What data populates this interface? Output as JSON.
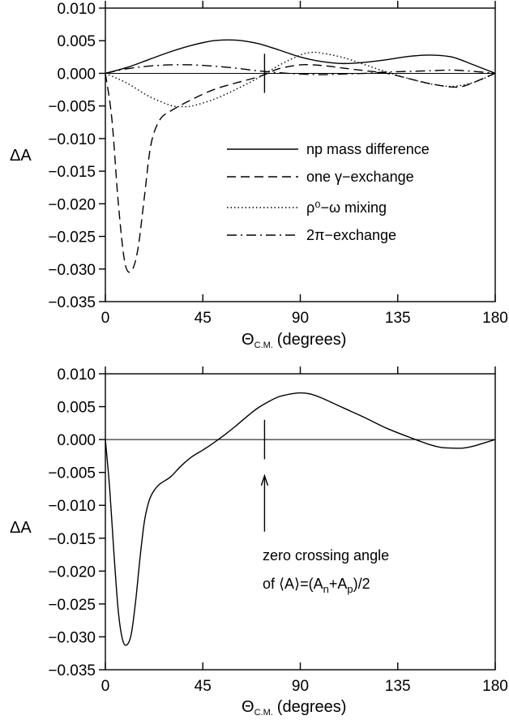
{
  "chart_data": [
    {
      "type": "line",
      "xlabel": "Θ",
      "xlabel_sub": "C.M.",
      "xlabel_unit": "(degrees)",
      "ylabel": "ΔA",
      "xlim": [
        0,
        180
      ],
      "ylim": [
        -0.035,
        0.01
      ],
      "xticks": [
        0,
        45,
        90,
        135,
        180
      ],
      "yticks": [
        0.01,
        0.005,
        0.0,
        -0.005,
        -0.01,
        -0.015,
        -0.02,
        -0.025,
        -0.03,
        -0.035
      ],
      "ytick_labels": [
        "0.010",
        "0.005",
        "0.000",
        "−0.005",
        "−0.010",
        "−0.015",
        "−0.020",
        "−0.025",
        "−0.030",
        "−0.035"
      ],
      "zero_line": true,
      "grid": false,
      "legend_position": "center-right",
      "marker": {
        "x": 73.5,
        "y_from": -0.003,
        "y_to": 0.003
      },
      "series": [
        {
          "name": "np mass difference",
          "style": "solid",
          "x": [
            0,
            10,
            20,
            30,
            40,
            50,
            60,
            70,
            80,
            90,
            100,
            110,
            120,
            130,
            140,
            150,
            160,
            170,
            180
          ],
          "y": [
            0,
            0.0009,
            0.0021,
            0.0033,
            0.0043,
            0.005,
            0.0051,
            0.0046,
            0.0036,
            0.0025,
            0.0018,
            0.0015,
            0.0017,
            0.0021,
            0.0026,
            0.0028,
            0.0025,
            0.0013,
            0
          ]
        },
        {
          "name": "one γ−exchange",
          "style": "dashed",
          "x": [
            0,
            3,
            6,
            9,
            12,
            15,
            18,
            21,
            25,
            30,
            40,
            50,
            60,
            70,
            75,
            80,
            90,
            100,
            110,
            120,
            130,
            140,
            150,
            160,
            165,
            170,
            180
          ],
          "y": [
            0,
            -0.007,
            -0.02,
            -0.029,
            -0.0303,
            -0.027,
            -0.019,
            -0.011,
            -0.0072,
            -0.0058,
            -0.004,
            -0.0025,
            -0.0015,
            -0.0006,
            0.0,
            0.0007,
            0.0013,
            0.0012,
            0.0008,
            0.0004,
            0.0,
            -0.0008,
            -0.0016,
            -0.0021,
            -0.002,
            -0.0014,
            0
          ]
        },
        {
          "name": "ρ⁰−ω mixing",
          "style": "dotted",
          "x": [
            0,
            10,
            20,
            30,
            35,
            40,
            50,
            60,
            70,
            80,
            90,
            95,
            100,
            110,
            120,
            130,
            140,
            150,
            160,
            170,
            180
          ],
          "y": [
            0,
            -0.0015,
            -0.0035,
            -0.0049,
            -0.0051,
            -0.005,
            -0.004,
            -0.0025,
            -0.0008,
            0.0012,
            0.0028,
            0.0032,
            0.0031,
            0.0024,
            0.0013,
            0.0002,
            -0.0008,
            -0.0016,
            -0.002,
            -0.0014,
            0
          ]
        },
        {
          "name": "2π−exchange",
          "style": "dashdot",
          "x": [
            0,
            10,
            20,
            30,
            40,
            50,
            60,
            70,
            80,
            90,
            100,
            110,
            120,
            130,
            140,
            150,
            160,
            170,
            180
          ],
          "y": [
            0,
            0.0007,
            0.0011,
            0.0013,
            0.0013,
            0.0011,
            0.0008,
            0.0004,
            0.0001,
            -0.0001,
            -0.0002,
            -0.0001,
            0.0,
            0.0002,
            0.0003,
            0.0004,
            0.0005,
            0.0003,
            0
          ]
        }
      ]
    },
    {
      "type": "line",
      "xlabel": "Θ",
      "xlabel_sub": "C.M.",
      "xlabel_unit": "(degrees)",
      "ylabel": "ΔA",
      "xlim": [
        0,
        180
      ],
      "ylim": [
        -0.035,
        0.01
      ],
      "xticks": [
        0,
        45,
        90,
        135,
        180
      ],
      "yticks": [
        0.01,
        0.005,
        0.0,
        -0.005,
        -0.01,
        -0.015,
        -0.02,
        -0.025,
        -0.03,
        -0.035
      ],
      "ytick_labels": [
        "0.010",
        "0.005",
        "0.000",
        "−0.005",
        "−0.010",
        "−0.015",
        "−0.020",
        "−0.025",
        "−0.030",
        "−0.035"
      ],
      "zero_line": true,
      "grid": false,
      "marker": {
        "x": 73.5,
        "y_from": -0.003,
        "y_to": 0.003
      },
      "annotation": {
        "line1": "zero crossing angle",
        "line2": "of ⟨A⟩=(A",
        "sub_n": "n",
        "plus": "+A",
        "sub_p": "p",
        "close": ")/2",
        "arrow_x": 73.5,
        "arrow_y_tip": -0.0055,
        "arrow_y_tail": -0.014
      },
      "series": [
        {
          "style": "solid",
          "x": [
            0,
            2,
            4,
            6,
            8,
            10,
            12,
            14,
            16,
            18,
            20,
            22,
            25,
            30,
            35,
            40,
            45,
            50,
            55,
            60,
            65,
            70,
            75,
            80,
            85,
            90,
            95,
            100,
            110,
            120,
            130,
            140,
            150,
            155,
            160,
            165,
            170,
            175,
            180
          ],
          "y": [
            0,
            -0.0075,
            -0.0175,
            -0.0262,
            -0.0305,
            -0.0312,
            -0.0295,
            -0.0245,
            -0.018,
            -0.0125,
            -0.0095,
            -0.008,
            -0.0068,
            -0.0057,
            -0.004,
            -0.0026,
            -0.0016,
            -0.0005,
            0.0007,
            0.002,
            0.0034,
            0.0047,
            0.0057,
            0.0065,
            0.0069,
            0.0071,
            0.0069,
            0.0063,
            0.0048,
            0.0033,
            0.0017,
            0.0004,
            -0.0008,
            -0.0012,
            -0.0013,
            -0.0013,
            -0.001,
            -0.0005,
            0
          ]
        }
      ]
    }
  ]
}
